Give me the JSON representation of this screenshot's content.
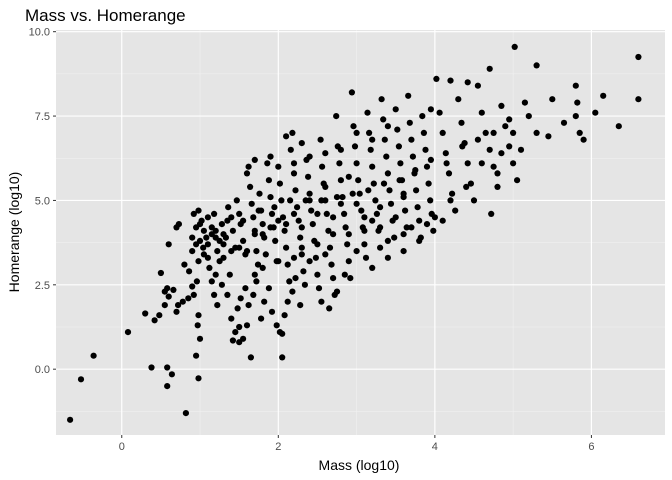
{
  "chart_data": {
    "type": "scatter",
    "title": "Mass vs. Homerange",
    "xlabel": "Mass (log10)",
    "ylabel": "Homerange (log10)",
    "xlim": [
      -0.84,
      6.94
    ],
    "ylim": [
      -1.95,
      10.05
    ],
    "x_ticks": [
      0,
      2,
      4,
      6
    ],
    "y_ticks": [
      0.0,
      2.5,
      5.0,
      7.5,
      10.0
    ],
    "y_tick_labels": [
      "0.0",
      "2.5",
      "5.0",
      "7.5",
      "10.0"
    ],
    "grid": true,
    "legend": "none",
    "colors": {
      "panel": "#e5e5e5",
      "grid_major": "#ffffff",
      "grid_minor": "#f2f2f2",
      "point": "#000000",
      "tick": "#333333"
    },
    "points": [
      [
        -0.66,
        -1.5
      ],
      [
        -0.52,
        -0.3
      ],
      [
        -0.36,
        0.4
      ],
      [
        0.08,
        1.1
      ],
      [
        0.38,
        0.05
      ],
      [
        0.58,
        0.05
      ],
      [
        0.58,
        -0.5
      ],
      [
        0.64,
        -0.15
      ],
      [
        0.82,
        -1.3
      ],
      [
        0.95,
        0.4
      ],
      [
        0.98,
        -0.27
      ],
      [
        0.3,
        1.65
      ],
      [
        0.42,
        1.45
      ],
      [
        0.48,
        1.6
      ],
      [
        0.55,
        1.9
      ],
      [
        0.55,
        2.3
      ],
      [
        0.6,
        2.15
      ],
      [
        0.66,
        2.35
      ],
      [
        0.5,
        2.85
      ],
      [
        0.58,
        2.4
      ],
      [
        0.7,
        1.7
      ],
      [
        0.72,
        1.9
      ],
      [
        0.78,
        2.0
      ],
      [
        0.85,
        2.1
      ],
      [
        0.9,
        2.45
      ],
      [
        0.96,
        2.6
      ],
      [
        0.92,
        2.2
      ],
      [
        0.98,
        1.6
      ],
      [
        0.97,
        1.3
      ],
      [
        1.0,
        0.9
      ],
      [
        0.86,
        2.9
      ],
      [
        0.8,
        3.1
      ],
      [
        0.6,
        3.7
      ],
      [
        0.7,
        4.2
      ],
      [
        0.73,
        4.3
      ],
      [
        0.9,
        3.5
      ],
      [
        0.95,
        3.7
      ],
      [
        0.92,
        4.6
      ],
      [
        0.98,
        4.7
      ],
      [
        1.02,
        4.4
      ],
      [
        1.05,
        4.1
      ],
      [
        1.08,
        3.9
      ],
      [
        1.04,
        3.6
      ],
      [
        1.1,
        3.3
      ],
      [
        1.12,
        3.0
      ],
      [
        1.15,
        2.6
      ],
      [
        1.18,
        2.2
      ],
      [
        1.22,
        1.9
      ],
      [
        1.2,
        2.8
      ],
      [
        1.25,
        3.2
      ],
      [
        1.28,
        2.5
      ],
      [
        1.35,
        2.2
      ],
      [
        1.38,
        2.8
      ],
      [
        1.4,
        1.5
      ],
      [
        1.45,
        1.1
      ],
      [
        1.5,
        0.8
      ],
      [
        1.55,
        0.9
      ],
      [
        1.6,
        1.3
      ],
      [
        1.48,
        1.8
      ],
      [
        1.52,
        2.1
      ],
      [
        1.58,
        2.4
      ],
      [
        1.62,
        1.9
      ],
      [
        1.68,
        2.2
      ],
      [
        1.72,
        2.6
      ],
      [
        1.78,
        1.5
      ],
      [
        1.82,
        2.0
      ],
      [
        1.88,
        2.4
      ],
      [
        1.92,
        1.7
      ],
      [
        1.98,
        1.3
      ],
      [
        2.02,
        1.1
      ],
      [
        2.05,
        1.05
      ],
      [
        2.08,
        1.6
      ],
      [
        2.12,
        2.0
      ],
      [
        2.18,
        2.3
      ],
      [
        2.22,
        2.7
      ],
      [
        2.28,
        1.9
      ],
      [
        2.05,
        0.35
      ],
      [
        1.65,
        0.35
      ],
      [
        1.5,
        1.25
      ],
      [
        1.42,
        0.85
      ],
      [
        1.1,
        4.5
      ],
      [
        1.15,
        4.2
      ],
      [
        1.18,
        4.6
      ],
      [
        1.22,
        3.5
      ],
      [
        1.25,
        3.8
      ],
      [
        1.28,
        4.3
      ],
      [
        1.3,
        3.3
      ],
      [
        1.33,
        3.9
      ],
      [
        1.36,
        4.8
      ],
      [
        1.4,
        4.5
      ],
      [
        1.42,
        4.1
      ],
      [
        1.45,
        3.6
      ],
      [
        1.47,
        5.0
      ],
      [
        1.5,
        4.6
      ],
      [
        1.52,
        4.3
      ],
      [
        1.55,
        3.8
      ],
      [
        1.58,
        3.4
      ],
      [
        1.6,
        5.8
      ],
      [
        1.62,
        6.0
      ],
      [
        1.64,
        5.4
      ],
      [
        1.66,
        4.9
      ],
      [
        1.68,
        4.5
      ],
      [
        1.7,
        4.0
      ],
      [
        1.72,
        3.5
      ],
      [
        1.74,
        3.1
      ],
      [
        1.76,
        5.2
      ],
      [
        1.78,
        4.7
      ],
      [
        1.8,
        4.3
      ],
      [
        1.82,
        3.9
      ],
      [
        1.84,
        3.4
      ],
      [
        1.86,
        6.1
      ],
      [
        1.88,
        5.6
      ],
      [
        1.9,
        5.1
      ],
      [
        1.92,
        4.6
      ],
      [
        1.94,
        4.2
      ],
      [
        1.96,
        3.8
      ],
      [
        1.98,
        3.2
      ],
      [
        2.0,
        6.0
      ],
      [
        2.02,
        5.5
      ],
      [
        2.04,
        5.0
      ],
      [
        2.06,
        4.5
      ],
      [
        2.08,
        4.1
      ],
      [
        2.1,
        3.6
      ],
      [
        2.12,
        3.1
      ],
      [
        2.14,
        2.6
      ],
      [
        2.16,
        6.5
      ],
      [
        2.18,
        7.0
      ],
      [
        2.2,
        5.8
      ],
      [
        2.22,
        5.3
      ],
      [
        2.24,
        4.8
      ],
      [
        2.26,
        4.4
      ],
      [
        2.28,
        3.9
      ],
      [
        2.3,
        3.4
      ],
      [
        2.32,
        2.9
      ],
      [
        2.34,
        2.5
      ],
      [
        2.36,
        6.2
      ],
      [
        2.38,
        5.7
      ],
      [
        2.4,
        5.2
      ],
      [
        2.42,
        4.7
      ],
      [
        2.44,
        4.3
      ],
      [
        2.46,
        3.8
      ],
      [
        2.48,
        3.3
      ],
      [
        2.5,
        2.8
      ],
      [
        2.52,
        2.4
      ],
      [
        2.54,
        6.8
      ],
      [
        2.56,
        6.0
      ],
      [
        2.58,
        5.5
      ],
      [
        2.6,
        5.0
      ],
      [
        2.62,
        4.6
      ],
      [
        2.64,
        4.1
      ],
      [
        2.66,
        3.6
      ],
      [
        2.68,
        3.1
      ],
      [
        2.7,
        2.7
      ],
      [
        2.72,
        2.2
      ],
      [
        2.74,
        7.5
      ],
      [
        2.76,
        6.6
      ],
      [
        2.78,
        6.1
      ],
      [
        2.8,
        5.6
      ],
      [
        2.82,
        5.1
      ],
      [
        2.84,
        4.6
      ],
      [
        2.86,
        4.2
      ],
      [
        2.88,
        3.7
      ],
      [
        2.9,
        3.2
      ],
      [
        2.92,
        2.7
      ],
      [
        2.94,
        8.2
      ],
      [
        2.96,
        7.2
      ],
      [
        2.98,
        6.6
      ],
      [
        3.0,
        6.1
      ],
      [
        3.02,
        5.6
      ],
      [
        3.04,
        5.2
      ],
      [
        3.06,
        4.7
      ],
      [
        3.08,
        4.2
      ],
      [
        3.1,
        3.7
      ],
      [
        3.12,
        3.3
      ],
      [
        3.14,
        7.6
      ],
      [
        3.16,
        7.0
      ],
      [
        3.18,
        6.5
      ],
      [
        3.2,
        6.0
      ],
      [
        3.22,
        5.5
      ],
      [
        3.24,
        5.0
      ],
      [
        3.26,
        4.6
      ],
      [
        3.28,
        4.1
      ],
      [
        3.3,
        3.6
      ],
      [
        3.32,
        8.0
      ],
      [
        3.34,
        7.4
      ],
      [
        3.36,
        6.8
      ],
      [
        3.38,
        6.3
      ],
      [
        3.4,
        5.8
      ],
      [
        3.42,
        5.3
      ],
      [
        3.44,
        4.9
      ],
      [
        3.46,
        4.4
      ],
      [
        3.48,
        3.9
      ],
      [
        3.5,
        7.7
      ],
      [
        3.52,
        7.1
      ],
      [
        3.54,
        6.6
      ],
      [
        3.56,
        6.1
      ],
      [
        3.58,
        5.6
      ],
      [
        3.6,
        5.1
      ],
      [
        3.62,
        4.7
      ],
      [
        3.64,
        4.2
      ],
      [
        3.66,
        8.1
      ],
      [
        3.68,
        7.3
      ],
      [
        3.7,
        6.8
      ],
      [
        3.72,
        6.3
      ],
      [
        3.74,
        5.8
      ],
      [
        3.76,
        5.3
      ],
      [
        3.78,
        4.8
      ],
      [
        3.8,
        4.4
      ],
      [
        3.82,
        3.9
      ],
      [
        3.84,
        7.5
      ],
      [
        3.86,
        7.0
      ],
      [
        3.88,
        6.5
      ],
      [
        3.9,
        6.0
      ],
      [
        3.92,
        5.5
      ],
      [
        3.94,
        5.0
      ],
      [
        3.96,
        4.6
      ],
      [
        3.98,
        4.1
      ],
      [
        4.02,
        8.6
      ],
      [
        4.06,
        7.6
      ],
      [
        4.1,
        7.0
      ],
      [
        4.14,
        6.4
      ],
      [
        4.18,
        5.8
      ],
      [
        4.22,
        5.2
      ],
      [
        4.26,
        4.7
      ],
      [
        4.3,
        8.0
      ],
      [
        4.34,
        7.3
      ],
      [
        4.38,
        6.7
      ],
      [
        4.42,
        6.1
      ],
      [
        4.46,
        5.5
      ],
      [
        4.5,
        5.0
      ],
      [
        4.55,
        8.4
      ],
      [
        4.6,
        7.6
      ],
      [
        4.65,
        7.0
      ],
      [
        4.7,
        6.5
      ],
      [
        4.75,
        6.0
      ],
      [
        4.8,
        5.4
      ],
      [
        4.85,
        7.8
      ],
      [
        4.9,
        7.2
      ],
      [
        4.95,
        6.6
      ],
      [
        5.0,
        6.1
      ],
      [
        5.05,
        5.6
      ],
      [
        4.72,
        4.6
      ],
      [
        5.02,
        9.55
      ],
      [
        5.3,
        9.0
      ],
      [
        5.5,
        8.0
      ],
      [
        5.2,
        7.5
      ],
      [
        5.3,
        7.0
      ],
      [
        5.45,
        6.9
      ],
      [
        5.65,
        7.3
      ],
      [
        5.8,
        7.5
      ],
      [
        5.82,
        7.9
      ],
      [
        5.85,
        7.0
      ],
      [
        5.9,
        6.8
      ],
      [
        6.05,
        7.6
      ],
      [
        6.15,
        8.1
      ],
      [
        6.35,
        7.2
      ],
      [
        6.6,
        8.0
      ],
      [
        6.6,
        9.25
      ],
      [
        5.8,
        8.4
      ],
      [
        4.7,
        8.9
      ],
      [
        4.42,
        8.5
      ],
      [
        4.2,
        8.55
      ],
      [
        3.95,
        7.7
      ],
      [
        3.6,
        5.2
      ],
      [
        3.2,
        4.4
      ],
      [
        2.9,
        5.7
      ],
      [
        2.6,
        5.4
      ],
      [
        2.4,
        5.0
      ],
      [
        2.2,
        4.6
      ],
      [
        2.0,
        4.4
      ],
      [
        1.8,
        4.0
      ],
      [
        1.5,
        3.6
      ],
      [
        1.3,
        4.0
      ],
      [
        1.2,
        3.9
      ],
      [
        1.0,
        3.8
      ],
      [
        1.05,
        3.4
      ],
      [
        0.98,
        3.2
      ],
      [
        1.1,
        3.7
      ],
      [
        1.15,
        4.0
      ],
      [
        1.35,
        4.4
      ],
      [
        1.55,
        4.4
      ],
      [
        1.75,
        4.7
      ],
      [
        1.95,
        4.8
      ],
      [
        2.15,
        5.0
      ],
      [
        2.35,
        5.0
      ],
      [
        2.55,
        5.0
      ],
      [
        2.75,
        5.1
      ],
      [
        2.95,
        5.2
      ],
      [
        3.15,
        5.3
      ],
      [
        3.35,
        5.5
      ],
      [
        3.55,
        5.6
      ],
      [
        3.75,
        5.9
      ],
      [
        3.95,
        6.2
      ],
      [
        4.15,
        6.1
      ],
      [
        4.35,
        6.6
      ],
      [
        4.55,
        6.8
      ],
      [
        4.75,
        7.0
      ],
      [
        4.95,
        7.4
      ],
      [
        5.15,
        7.9
      ],
      [
        4.85,
        6.4
      ],
      [
        5.1,
        6.5
      ],
      [
        3.0,
        4.9
      ],
      [
        2.8,
        4.9
      ],
      [
        2.7,
        4.5
      ],
      [
        2.5,
        4.6
      ],
      [
        2.3,
        4.2
      ],
      [
        2.1,
        4.3
      ],
      [
        1.9,
        4.2
      ],
      [
        1.7,
        4.1
      ],
      [
        1.6,
        3.5
      ],
      [
        1.4,
        3.5
      ],
      [
        1.3,
        3.7
      ],
      [
        1.2,
        4.1
      ],
      [
        1.0,
        4.3
      ],
      [
        0.9,
        3.9
      ],
      [
        0.95,
        4.2
      ],
      [
        3.1,
        4.5
      ],
      [
        3.3,
        4.8
      ],
      [
        3.5,
        4.5
      ],
      [
        3.7,
        4.2
      ],
      [
        3.9,
        4.3
      ],
      [
        4.1,
        4.4
      ],
      [
        3.4,
        3.8
      ],
      [
        3.6,
        3.5
      ],
      [
        2.6,
        3.4
      ],
      [
        2.4,
        3.2
      ],
      [
        2.2,
        3.3
      ],
      [
        2.0,
        3.2
      ],
      [
        1.8,
        3.0
      ],
      [
        1.7,
        2.8
      ],
      [
        2.5,
        3.7
      ],
      [
        2.3,
        3.6
      ],
      [
        2.7,
        4.0
      ],
      [
        2.9,
        4.0
      ],
      [
        3.1,
        4.1
      ],
      [
        3.3,
        4.2
      ],
      [
        2.85,
        2.8
      ],
      [
        2.75,
        2.3
      ],
      [
        2.65,
        1.8
      ],
      [
        2.55,
        2.0
      ],
      [
        3.0,
        3.5
      ],
      [
        3.2,
        3.0
      ],
      [
        3.4,
        3.3
      ],
      [
        3.6,
        4.0
      ],
      [
        3.8,
        3.8
      ],
      [
        4.0,
        4.5
      ],
      [
        4.2,
        5.0
      ],
      [
        4.4,
        5.4
      ],
      [
        4.6,
        6.1
      ],
      [
        4.8,
        5.8
      ],
      [
        5.0,
        7.0
      ],
      [
        3.0,
        7.0
      ],
      [
        3.2,
        6.8
      ],
      [
        3.4,
        7.2
      ],
      [
        2.8,
        6.5
      ],
      [
        2.6,
        6.4
      ],
      [
        2.4,
        6.3
      ],
      [
        2.2,
        6.1
      ],
      [
        2.3,
        6.7
      ],
      [
        2.1,
        6.9
      ],
      [
        1.9,
        6.3
      ],
      [
        1.7,
        6.2
      ]
    ]
  }
}
